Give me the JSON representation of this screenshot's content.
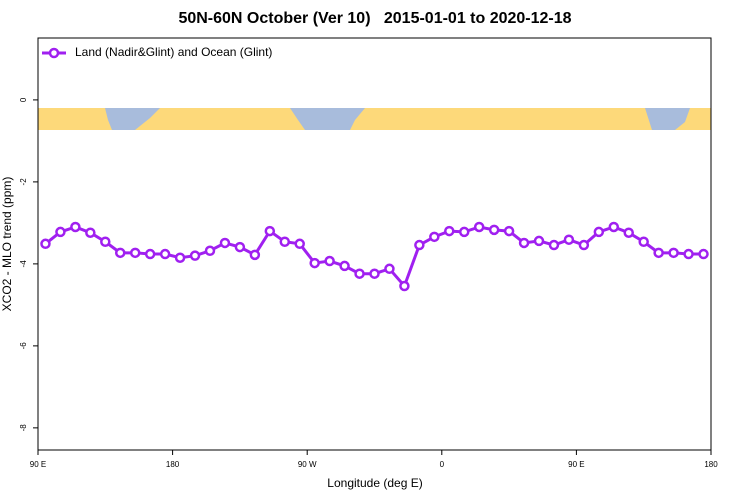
{
  "chart_data": {
    "type": "line",
    "title": "50N-60N October (Ver 10)   2015-01-01 to 2020-12-18",
    "x_label": "Longitude (deg E)",
    "y_label": "XCO2 - MLO trend (ppm)",
    "xlim": [
      90,
      540
    ],
    "xticks": [
      {
        "value": 90,
        "label": "90 E"
      },
      {
        "value": 180,
        "label": "180"
      },
      {
        "value": 270,
        "label": "90 W"
      },
      {
        "value": 360,
        "label": "0"
      },
      {
        "value": 450,
        "label": "90 E"
      },
      {
        "value": 540,
        "label": "180"
      }
    ],
    "ylim": [
      -8.54,
      1.51
    ],
    "yticks": [
      0,
      -2,
      -4,
      -6,
      -8
    ],
    "legend": "top-left",
    "x": [
      95,
      105,
      115,
      125,
      135,
      145,
      155,
      165,
      175,
      185,
      195,
      205,
      215,
      225,
      235,
      245,
      255,
      265,
      275,
      285,
      295,
      305,
      315,
      325,
      335,
      345,
      355,
      365,
      375,
      385,
      395,
      405,
      415,
      425,
      435,
      445,
      455,
      465,
      475,
      485,
      495,
      505,
      515,
      525,
      535
    ],
    "series": [
      {
        "name": "Land (Nadir&Glint) and Ocean (Glint)",
        "color": "#a020f0",
        "values": [
          -3.51,
          -3.22,
          -3.1,
          -3.24,
          -3.46,
          -3.73,
          -3.73,
          -3.76,
          -3.76,
          -3.85,
          -3.8,
          -3.68,
          -3.49,
          -3.59,
          -3.78,
          -3.2,
          -3.46,
          -3.51,
          -3.98,
          -3.93,
          -4.05,
          -4.24,
          -4.24,
          -4.12,
          -4.54,
          -3.54,
          -3.34,
          -3.2,
          -3.22,
          -3.1,
          -3.17,
          -3.2,
          -3.49,
          -3.44,
          -3.54,
          -3.41,
          -3.54,
          -3.22,
          -3.1,
          -3.24,
          -3.46,
          -3.73,
          -3.73,
          -3.76,
          -3.76
        ]
      }
    ]
  }
}
